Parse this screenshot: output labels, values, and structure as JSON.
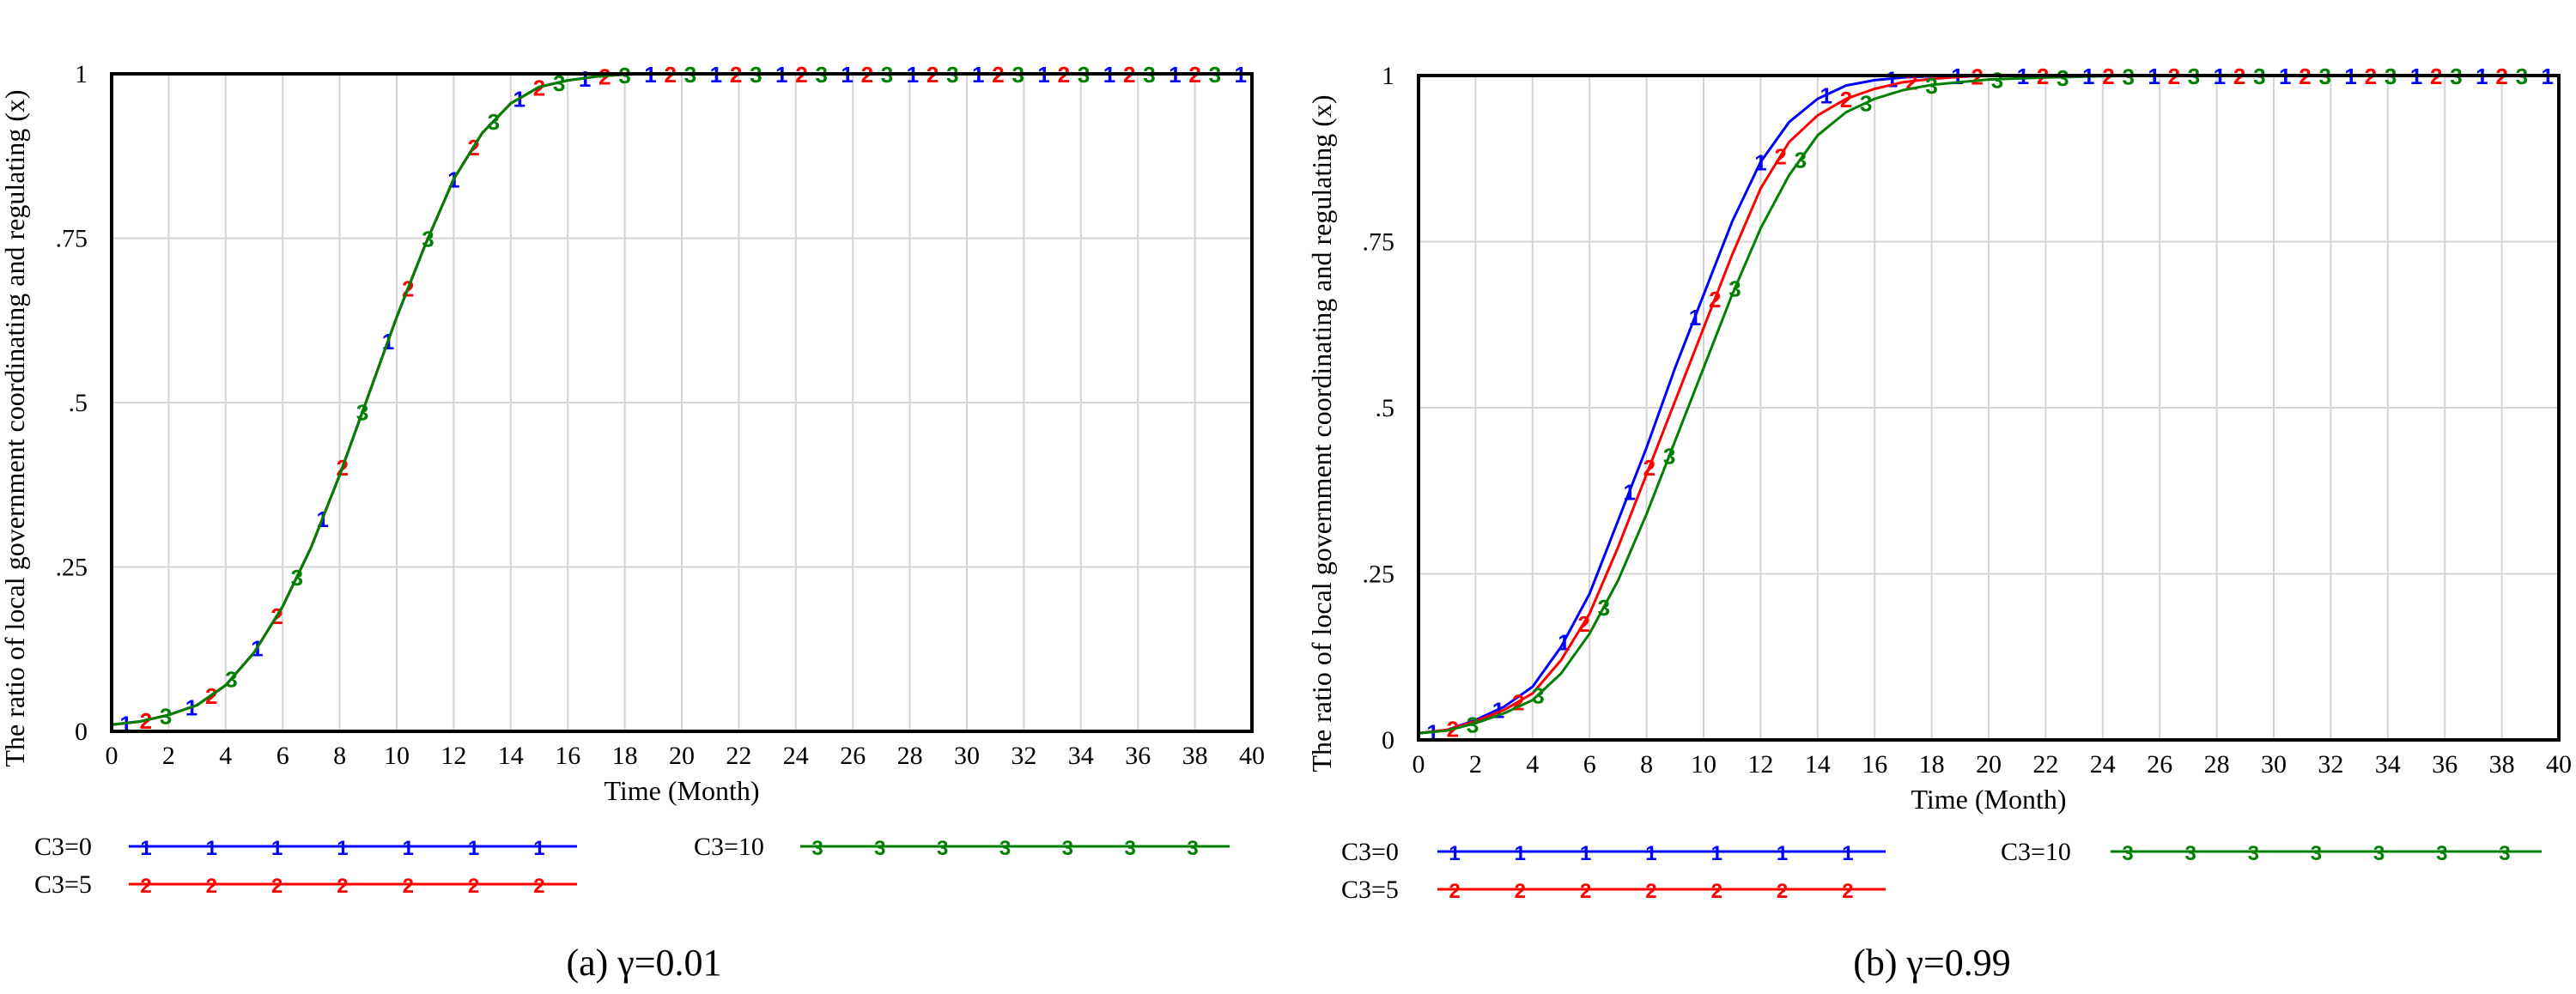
{
  "chart_data": [
    {
      "type": "line",
      "caption": "(a) γ=0.01",
      "xlabel": "Time (Month)",
      "ylabel": "The ratio of local government coordinating and regulating (x)",
      "xlim": [
        0,
        40
      ],
      "ylim": [
        0,
        1
      ],
      "x_ticks": [
        "0",
        "2",
        "4",
        "6",
        "8",
        "10",
        "12",
        "14",
        "16",
        "18",
        "20",
        "22",
        "24",
        "26",
        "28",
        "30",
        "32",
        "34",
        "36",
        "38",
        "40"
      ],
      "y_ticks": [
        {
          "v": 0,
          "label": "0"
        },
        {
          "v": 0.25,
          "label": ".25"
        },
        {
          "v": 0.5,
          "label": ".5"
        },
        {
          "v": 0.75,
          "label": ".75"
        },
        {
          "v": 1,
          "label": "1"
        }
      ],
      "grid": true,
      "legend_position": "bottom",
      "series": [
        {
          "name": "C3=0",
          "marker": "1",
          "color": "#0000ff",
          "x": [
            0,
            1,
            2,
            3,
            4,
            5,
            6,
            7,
            8,
            9,
            10,
            11,
            12,
            13,
            14,
            15,
            16,
            17,
            18,
            19,
            20,
            22,
            24,
            26,
            28,
            30,
            32,
            34,
            36,
            38,
            40
          ],
          "values": [
            0.01,
            0.015,
            0.025,
            0.04,
            0.07,
            0.12,
            0.19,
            0.28,
            0.39,
            0.51,
            0.63,
            0.74,
            0.84,
            0.91,
            0.955,
            0.98,
            0.99,
            0.996,
            0.999,
            1,
            1,
            1,
            1,
            1,
            1,
            1,
            1,
            1,
            1,
            1,
            1
          ]
        },
        {
          "name": "C3=5",
          "marker": "2",
          "color": "#ff0000",
          "x": [
            0,
            1,
            2,
            3,
            4,
            5,
            6,
            7,
            8,
            9,
            10,
            11,
            12,
            13,
            14,
            15,
            16,
            17,
            18,
            19,
            20,
            22,
            24,
            26,
            28,
            30,
            32,
            34,
            36,
            38,
            40
          ],
          "values": [
            0.01,
            0.015,
            0.025,
            0.04,
            0.07,
            0.12,
            0.19,
            0.28,
            0.39,
            0.51,
            0.63,
            0.74,
            0.84,
            0.91,
            0.955,
            0.98,
            0.99,
            0.996,
            0.999,
            1,
            1,
            1,
            1,
            1,
            1,
            1,
            1,
            1,
            1,
            1,
            1
          ]
        },
        {
          "name": "C3=10",
          "marker": "3",
          "color": "#008000",
          "x": [
            0,
            1,
            2,
            3,
            4,
            5,
            6,
            7,
            8,
            9,
            10,
            11,
            12,
            13,
            14,
            15,
            16,
            17,
            18,
            19,
            20,
            22,
            24,
            26,
            28,
            30,
            32,
            34,
            36,
            38,
            40
          ],
          "values": [
            0.01,
            0.015,
            0.025,
            0.04,
            0.07,
            0.12,
            0.19,
            0.28,
            0.39,
            0.51,
            0.63,
            0.74,
            0.84,
            0.91,
            0.955,
            0.98,
            0.99,
            0.996,
            0.999,
            1,
            1,
            1,
            1,
            1,
            1,
            1,
            1,
            1,
            1,
            1,
            1
          ]
        }
      ]
    },
    {
      "type": "line",
      "caption": "(b) γ=0.99",
      "xlabel": "Time (Month)",
      "ylabel": "The ratio of local government coordinating and regulating (x)",
      "xlim": [
        0,
        40
      ],
      "ylim": [
        0,
        1
      ],
      "x_ticks": [
        "0",
        "2",
        "4",
        "6",
        "8",
        "10",
        "12",
        "14",
        "16",
        "18",
        "20",
        "22",
        "24",
        "26",
        "28",
        "30",
        "32",
        "34",
        "36",
        "38",
        "40"
      ],
      "y_ticks": [
        {
          "v": 0,
          "label": "0"
        },
        {
          "v": 0.25,
          "label": ".25"
        },
        {
          "v": 0.5,
          "label": ".5"
        },
        {
          "v": 0.75,
          "label": ".75"
        },
        {
          "v": 1,
          "label": "1"
        }
      ],
      "grid": true,
      "legend_position": "bottom",
      "series": [
        {
          "name": "C3=0",
          "marker": "1",
          "color": "#0000ff",
          "x": [
            0,
            1,
            2,
            3,
            4,
            5,
            6,
            7,
            8,
            9,
            10,
            11,
            12,
            13,
            14,
            15,
            16,
            17,
            18,
            19,
            20,
            22,
            24,
            26,
            28,
            30,
            32,
            34,
            36,
            38,
            40
          ],
          "values": [
            0.01,
            0.015,
            0.03,
            0.05,
            0.08,
            0.14,
            0.22,
            0.33,
            0.44,
            0.56,
            0.67,
            0.78,
            0.87,
            0.93,
            0.965,
            0.985,
            0.993,
            0.997,
            0.999,
            1,
            1,
            1,
            1,
            1,
            1,
            1,
            1,
            1,
            1,
            1,
            1
          ]
        },
        {
          "name": "C3=5",
          "marker": "2",
          "color": "#ff0000",
          "x": [
            0,
            1,
            2,
            3,
            4,
            5,
            6,
            7,
            8,
            9,
            10,
            11,
            12,
            13,
            14,
            15,
            16,
            17,
            18,
            19,
            20,
            22,
            24,
            26,
            28,
            30,
            32,
            34,
            36,
            38,
            40
          ],
          "values": [
            0.01,
            0.015,
            0.028,
            0.045,
            0.07,
            0.12,
            0.19,
            0.29,
            0.4,
            0.51,
            0.62,
            0.73,
            0.83,
            0.9,
            0.94,
            0.965,
            0.98,
            0.99,
            0.995,
            0.998,
            1,
            1,
            1,
            1,
            1,
            1,
            1,
            1,
            1,
            1,
            1
          ]
        },
        {
          "name": "C3=10",
          "marker": "3",
          "color": "#008000",
          "x": [
            0,
            1,
            2,
            3,
            4,
            5,
            6,
            7,
            8,
            9,
            10,
            11,
            12,
            13,
            14,
            15,
            16,
            17,
            18,
            19,
            20,
            22,
            24,
            26,
            28,
            30,
            32,
            34,
            36,
            38,
            40
          ],
          "values": [
            0.01,
            0.014,
            0.025,
            0.04,
            0.06,
            0.1,
            0.16,
            0.24,
            0.34,
            0.45,
            0.56,
            0.67,
            0.77,
            0.85,
            0.91,
            0.945,
            0.965,
            0.978,
            0.986,
            0.99,
            0.994,
            0.997,
            0.999,
            1,
            1,
            1,
            1,
            1,
            1,
            1,
            1
          ]
        }
      ]
    }
  ]
}
